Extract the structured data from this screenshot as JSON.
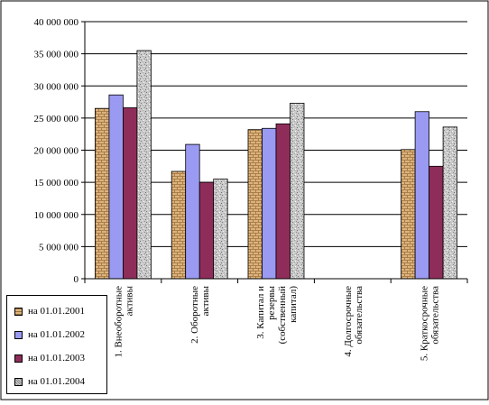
{
  "chart_data": {
    "type": "bar",
    "categories": [
      [
        "1. Внеоборотные",
        "активы"
      ],
      [
        "2. Оборотные",
        "активы"
      ],
      [
        "3. Капитал и",
        "резервы",
        "(собственный",
        "капитал)"
      ],
      [
        "4. Долгосрочные",
        "обязательства"
      ],
      [
        "5. Краткосрочные",
        "обязательства"
      ]
    ],
    "series": [
      {
        "name": "на 01.01.2001",
        "color": "#d9b27a",
        "pattern": "brick",
        "values": [
          26500000,
          16700000,
          23200000,
          0,
          20100000
        ]
      },
      {
        "name": "на 01.01.2002",
        "color": "#9a9af2",
        "pattern": "solid",
        "values": [
          28600000,
          20900000,
          23400000,
          0,
          26000000
        ]
      },
      {
        "name": "на 01.01.2003",
        "color": "#8f2d5a",
        "pattern": "solid",
        "values": [
          26600000,
          15000000,
          24100000,
          0,
          17500000
        ]
      },
      {
        "name": "на 01.01.2004",
        "color": "#c4c4c4",
        "pattern": "granite",
        "values": [
          35500000,
          15500000,
          27300000,
          0,
          23600000
        ]
      }
    ],
    "yticks": [
      "0",
      "5 000 000",
      "10 000 000",
      "15 000 000",
      "20 000 000",
      "25 000 000",
      "30 000 000",
      "35 000 000",
      "40 000 000"
    ],
    "ylim": [
      0,
      40000000
    ],
    "grid": true,
    "legend_position": "bottom-left"
  }
}
